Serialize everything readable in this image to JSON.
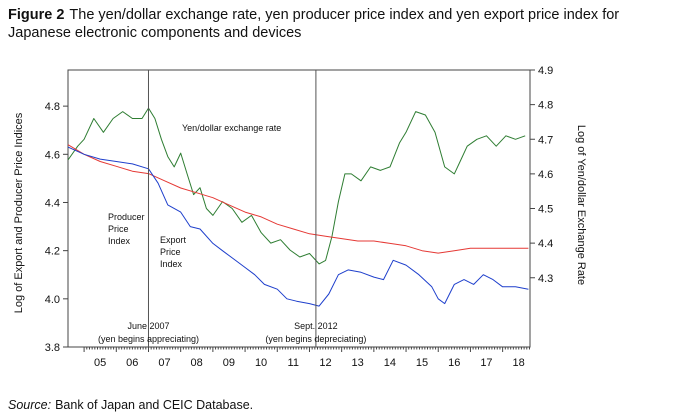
{
  "figure": {
    "label": "Figure 2",
    "title_line1": "The yen/dollar exchange rate, yen producer price index and yen export price index for",
    "title_line2": "Japanese electronic components and devices",
    "source_label": "Source:",
    "source_text": "Bank of Japan and CEIC Database."
  },
  "chart_data": {
    "type": "line",
    "xlabel": "",
    "ylabel_left": "Log of Export and Producer Price Indices",
    "ylabel_right": "Log of Yen/dollar Exchange Rate",
    "xlim": [
      2004.5,
      2018.85
    ],
    "ylim_left": [
      3.8,
      4.95
    ],
    "ylim_right": [
      4.1,
      4.9
    ],
    "x_ticks": [
      {
        "value": 2005,
        "label": "05"
      },
      {
        "value": 2006,
        "label": "06"
      },
      {
        "value": 2007,
        "label": "07"
      },
      {
        "value": 2008,
        "label": "08"
      },
      {
        "value": 2009,
        "label": "09"
      },
      {
        "value": 2010,
        "label": "10"
      },
      {
        "value": 2011,
        "label": "11"
      },
      {
        "value": 2012,
        "label": "12"
      },
      {
        "value": 2013,
        "label": "13"
      },
      {
        "value": 2014,
        "label": "14"
      },
      {
        "value": 2015,
        "label": "15"
      },
      {
        "value": 2016,
        "label": "16"
      },
      {
        "value": 2017,
        "label": "17"
      },
      {
        "value": 2018,
        "label": "18"
      }
    ],
    "y_ticks_left": [
      {
        "value": 3.8,
        "label": "3.8"
      },
      {
        "value": 4.0,
        "label": "4.0"
      },
      {
        "value": 4.2,
        "label": "4.2"
      },
      {
        "value": 4.4,
        "label": "4.4"
      },
      {
        "value": 4.6,
        "label": "4.6"
      },
      {
        "value": 4.8,
        "label": "4.8"
      }
    ],
    "y_ticks_right": [
      {
        "value": 4.3,
        "label": "4.3"
      },
      {
        "value": 4.4,
        "label": "4.4"
      },
      {
        "value": 4.5,
        "label": "4.5"
      },
      {
        "value": 4.6,
        "label": "4.6"
      },
      {
        "value": 4.7,
        "label": "4.7"
      },
      {
        "value": 4.8,
        "label": "4.8"
      },
      {
        "value": 4.9,
        "label": "4.9"
      }
    ],
    "grid": false,
    "series": [
      {
        "name": "Yen/dollar exchange rate",
        "axis": "right",
        "color": "#2e7d32",
        "x": [
          2004.5,
          2004.8,
          2005.0,
          2005.3,
          2005.6,
          2005.9,
          2006.2,
          2006.5,
          2006.8,
          2007.0,
          2007.2,
          2007.4,
          2007.6,
          2007.8,
          2008.0,
          2008.2,
          2008.4,
          2008.6,
          2008.8,
          2009.0,
          2009.3,
          2009.6,
          2009.9,
          2010.2,
          2010.5,
          2010.8,
          2011.1,
          2011.4,
          2011.7,
          2012.0,
          2012.3,
          2012.5,
          2012.7,
          2012.9,
          2013.1,
          2013.3,
          2013.6,
          2013.9,
          2014.2,
          2014.5,
          2014.8,
          2015.0,
          2015.3,
          2015.6,
          2015.9,
          2016.2,
          2016.5,
          2016.7,
          2016.9,
          2017.2,
          2017.5,
          2017.8,
          2018.1,
          2018.4,
          2018.7
        ],
        "y": [
          4.64,
          4.68,
          4.7,
          4.76,
          4.72,
          4.76,
          4.78,
          4.76,
          4.76,
          4.79,
          4.76,
          4.7,
          4.65,
          4.62,
          4.66,
          4.6,
          4.54,
          4.56,
          4.5,
          4.48,
          4.52,
          4.5,
          4.46,
          4.48,
          4.43,
          4.4,
          4.41,
          4.38,
          4.36,
          4.37,
          4.34,
          4.35,
          4.42,
          4.52,
          4.6,
          4.6,
          4.58,
          4.62,
          4.61,
          4.62,
          4.69,
          4.72,
          4.78,
          4.77,
          4.72,
          4.62,
          4.6,
          4.64,
          4.68,
          4.7,
          4.71,
          4.68,
          4.71,
          4.7,
          4.71
        ]
      },
      {
        "name": "Producer Price Index",
        "axis": "left",
        "color": "#e53935",
        "x": [
          2004.5,
          2005.0,
          2005.5,
          2006.0,
          2006.5,
          2007.0,
          2007.5,
          2008.0,
          2008.5,
          2009.0,
          2009.5,
          2010.0,
          2010.5,
          2011.0,
          2011.5,
          2012.0,
          2012.5,
          2013.0,
          2013.5,
          2014.0,
          2014.5,
          2015.0,
          2015.5,
          2016.0,
          2016.5,
          2017.0,
          2017.5,
          2018.0,
          2018.5,
          2018.8
        ],
        "y": [
          4.64,
          4.6,
          4.57,
          4.55,
          4.53,
          4.52,
          4.49,
          4.46,
          4.44,
          4.42,
          4.39,
          4.36,
          4.34,
          4.31,
          4.29,
          4.27,
          4.26,
          4.25,
          4.24,
          4.24,
          4.23,
          4.22,
          4.2,
          4.19,
          4.2,
          4.21,
          4.21,
          4.21,
          4.21,
          4.21
        ]
      },
      {
        "name": "Export Price Index",
        "axis": "left",
        "color": "#1e3fcc",
        "x": [
          2004.5,
          2005.0,
          2005.5,
          2006.0,
          2006.5,
          2007.0,
          2007.3,
          2007.6,
          2008.0,
          2008.3,
          2008.6,
          2009.0,
          2009.3,
          2009.6,
          2010.0,
          2010.3,
          2010.6,
          2011.0,
          2011.3,
          2011.6,
          2012.0,
          2012.3,
          2012.6,
          2012.9,
          2013.2,
          2013.6,
          2014.0,
          2014.3,
          2014.6,
          2015.0,
          2015.4,
          2015.8,
          2016.0,
          2016.2,
          2016.5,
          2016.8,
          2017.1,
          2017.4,
          2017.7,
          2018.0,
          2018.4,
          2018.8
        ],
        "y": [
          4.63,
          4.6,
          4.58,
          4.57,
          4.56,
          4.54,
          4.48,
          4.39,
          4.36,
          4.3,
          4.29,
          4.23,
          4.2,
          4.17,
          4.13,
          4.1,
          4.06,
          4.04,
          4.0,
          3.99,
          3.98,
          3.97,
          4.02,
          4.1,
          4.12,
          4.11,
          4.09,
          4.08,
          4.16,
          4.14,
          4.1,
          4.05,
          4.0,
          3.98,
          4.06,
          4.08,
          4.06,
          4.1,
          4.08,
          4.05,
          4.05,
          4.04
        ]
      }
    ],
    "series_labels": [
      {
        "lines": [
          "Yen/dollar exchange rate"
        ]
      },
      {
        "lines": [
          "Producer",
          "Price",
          "Index"
        ]
      },
      {
        "lines": [
          "Export",
          "Price",
          "Index"
        ]
      }
    ],
    "annotations": [
      {
        "x": 2007.0,
        "label_line1": "June 2007",
        "label_line2": "(yen begins appreciating)"
      },
      {
        "x": 2012.2,
        "label_line1": "Sept. 2012",
        "label_line2": "(yen begins depreciating)"
      }
    ]
  }
}
